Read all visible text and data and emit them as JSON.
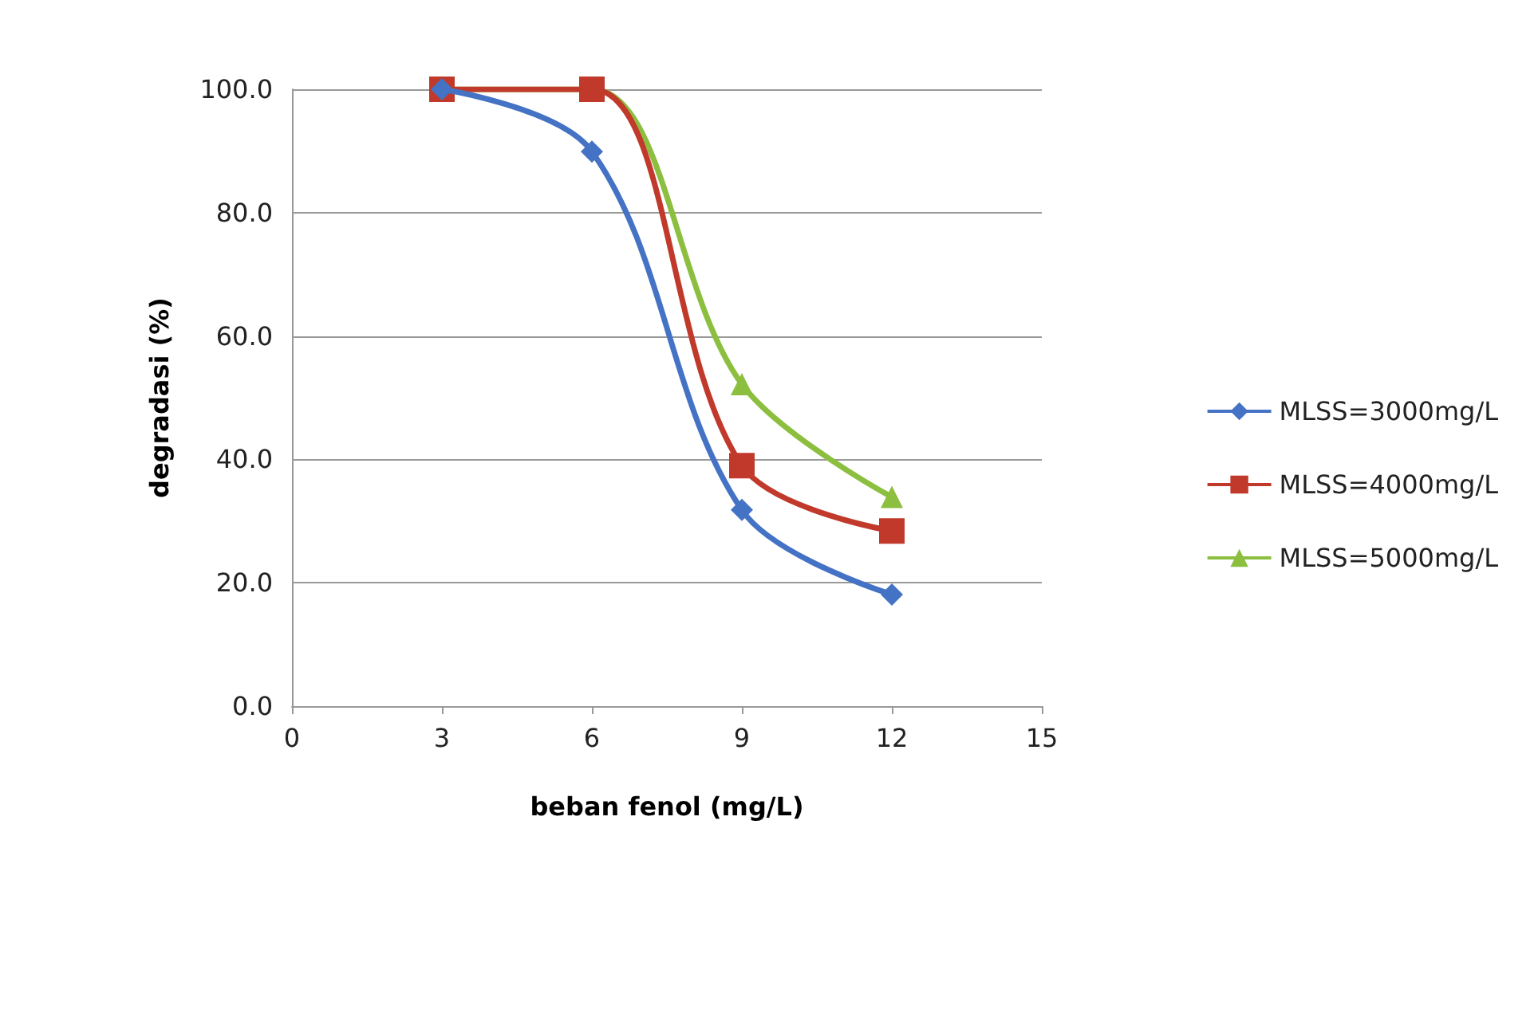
{
  "chart_data": {
    "type": "line",
    "xlabel": "beban fenol (mg/L)",
    "ylabel": "degradasi (%)",
    "x": [
      3,
      6,
      9,
      12
    ],
    "series": [
      {
        "name": "MLSS=3000mg/L",
        "color": "#4472c4",
        "marker": "diamond",
        "values": [
          100,
          89.9,
          31.8,
          18.1
        ]
      },
      {
        "name": "MLSS=4000mg/L",
        "color": "#c0392b",
        "marker": "square",
        "values": [
          100,
          100,
          39.0,
          28.4
        ]
      },
      {
        "name": "MLSS=5000mg/L",
        "color": "#8cbf3f",
        "marker": "triangle",
        "values": [
          100,
          100,
          52.2,
          33.9
        ]
      }
    ],
    "xlim": [
      0,
      15
    ],
    "xticks": [
      0,
      3,
      6,
      9,
      12,
      15
    ],
    "ylim": [
      0,
      100
    ],
    "yticks": [
      {
        "value": 0,
        "label": "0.0"
      },
      {
        "value": 20,
        "label": "20.0"
      },
      {
        "value": 40,
        "label": "40.0"
      },
      {
        "value": 60,
        "label": "60.0"
      },
      {
        "value": 80,
        "label": "80.0"
      },
      {
        "value": 100,
        "label": "100.0"
      }
    ],
    "grid": "y",
    "legend": "right",
    "line_style": "solid"
  }
}
